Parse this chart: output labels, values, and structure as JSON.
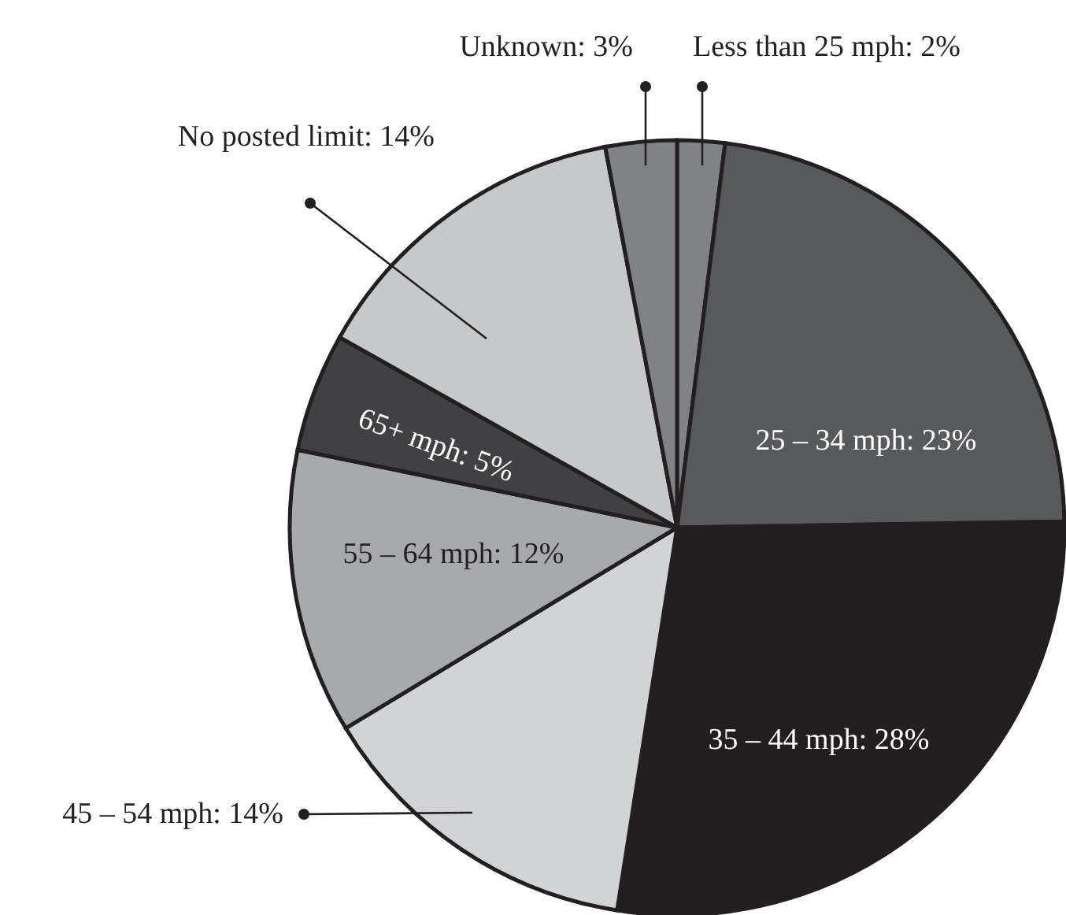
{
  "chart_data": {
    "type": "pie",
    "categories": [
      "Less than 25 mph: 2%",
      "25 – 34 mph: 23%",
      "35 – 44 mph: 28%",
      "45 – 54 mph: 14%",
      "55 – 64 mph: 12%",
      "65+ mph: 5%",
      "No posted limit: 14%",
      "Unknown: 3%"
    ],
    "values": [
      2,
      23,
      28,
      14,
      12,
      5,
      14,
      3
    ],
    "colors": [
      "#808285",
      "#58595b",
      "#231f20",
      "#d1d3d4",
      "#a7a9ac",
      "#414042",
      "#c7c8ca",
      "#808285"
    ]
  }
}
